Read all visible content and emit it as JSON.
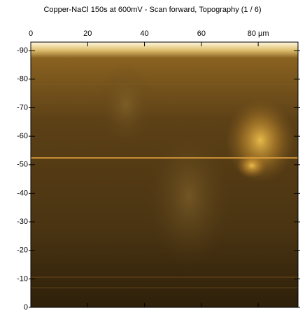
{
  "chart_data": {
    "type": "image",
    "title": "Copper-NaCl 150s at 600mV - Scan forward, Topography (1 / 6)",
    "xlim": [
      0,
      94
    ],
    "xticks": [
      0,
      20,
      40,
      60,
      {
        "value": 80,
        "label": "80 µm"
      }
    ],
    "ylim": [
      0,
      -93
    ],
    "yticks": [
      -90,
      -80,
      -70,
      -60,
      -50,
      -40,
      -30,
      -20,
      -10,
      0
    ]
  }
}
